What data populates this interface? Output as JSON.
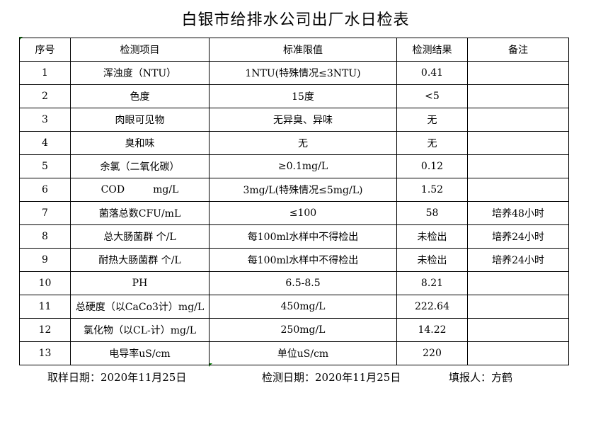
{
  "title": "白银市给排水公司出厂水日检表",
  "headers": [
    "序号",
    "检测项目",
    "标准限值",
    "检测结果",
    "备注"
  ],
  "rows": [
    [
      "1",
      "浑浊度（NTU）",
      "1NTU(特殊情况≤3NTU)",
      "0.41",
      ""
    ],
    [
      "2",
      "色度",
      "15度",
      "<5",
      ""
    ],
    [
      "3",
      "肉眼可见物",
      "无异臭、异味",
      "无",
      ""
    ],
    [
      "4",
      "臭和味",
      "无",
      "无",
      ""
    ],
    [
      "5",
      "余氯（二氧化碳）",
      "≥0.1mg/L",
      "0.12",
      ""
    ],
    [
      "6",
      "COD         mg/L",
      "3mg/L(特殊情况≤5mg/L)",
      "1.52",
      ""
    ],
    [
      "7",
      "菌落总数CFU/mL",
      "≤100",
      "58",
      "培养48小时"
    ],
    [
      "8",
      "总大肠菌群 个/L",
      "每100ml水样中不得检出",
      "未检出",
      "培养24小时"
    ],
    [
      "9",
      "耐热大肠菌群 个/L",
      "每100ml水样中不得检出",
      "未检出",
      "培养24小时"
    ],
    [
      "10",
      "PH",
      "6.5-8.5",
      "8.21",
      ""
    ],
    [
      "11",
      "总硬度（以CaCo3计）mg/L",
      "450mg/L",
      "222.64",
      ""
    ],
    [
      "12",
      "氯化物（以CL-计）mg/L",
      "250mg/L",
      "14.22",
      ""
    ],
    [
      "13",
      "电导率uS/cm",
      "单位uS/cm",
      "220",
      ""
    ]
  ],
  "footer": {
    "sampling_date": "取样日期：2020年11月25日",
    "test_date": "检测日期：2020年11月25日",
    "reporter": "填报人：方鹤"
  }
}
